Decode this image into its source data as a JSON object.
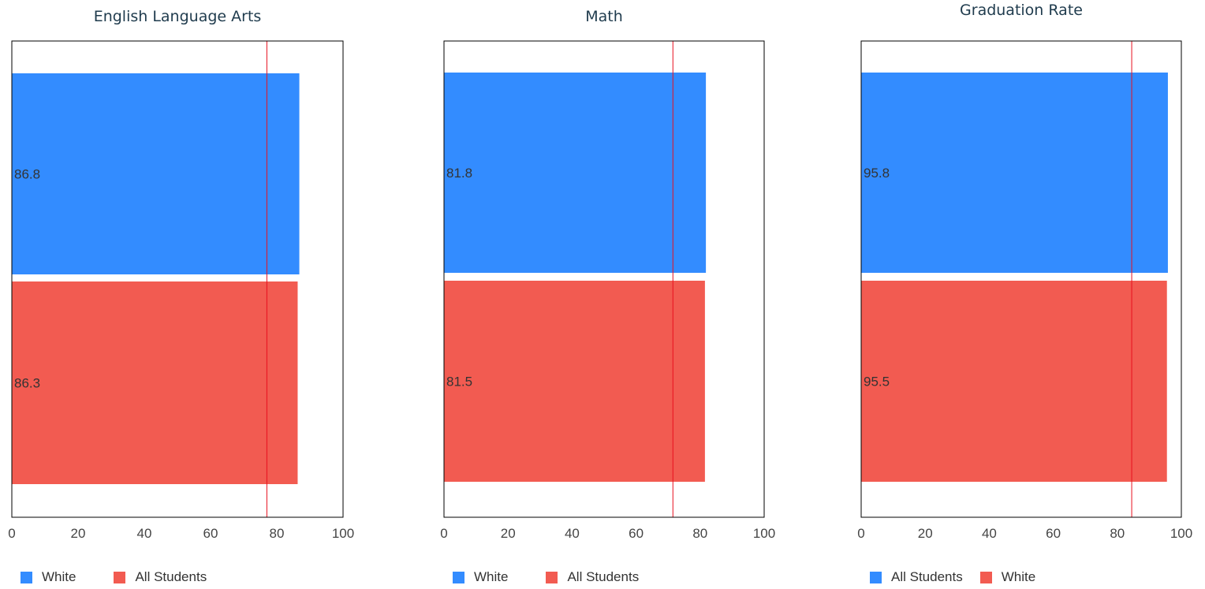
{
  "colors": {
    "blue": "#338cff",
    "red": "#f25b51",
    "reference_line": "#e8101e"
  },
  "chart_data": [
    {
      "type": "bar",
      "orientation": "horizontal",
      "title": "English Language Arts",
      "xlim": [
        0,
        100
      ],
      "ticks": [
        "0",
        "20",
        "40",
        "60",
        "80",
        "100"
      ],
      "reference_line": 77,
      "legend_placement": "bottom-left",
      "series": [
        {
          "name": "White",
          "value": 86.8,
          "label": "86.8",
          "color": "#338cff"
        },
        {
          "name": "All Students",
          "value": 86.3,
          "label": "86.3",
          "color": "#f25b51"
        }
      ],
      "legend": [
        {
          "name": "White",
          "color": "#338cff"
        },
        {
          "name": "All Students",
          "color": "#f25b51"
        }
      ]
    },
    {
      "type": "bar",
      "orientation": "horizontal",
      "title": "Math",
      "xlim": [
        0,
        100
      ],
      "ticks": [
        "0",
        "20",
        "40",
        "60",
        "80",
        "100"
      ],
      "reference_line": 71.5,
      "legend_placement": "bottom-left",
      "series": [
        {
          "name": "White",
          "value": 81.8,
          "label": "81.8",
          "color": "#338cff"
        },
        {
          "name": "All Students",
          "value": 81.5,
          "label": "81.5",
          "color": "#f25b51"
        }
      ],
      "legend": [
        {
          "name": "White",
          "color": "#338cff"
        },
        {
          "name": "All Students",
          "color": "#f25b51"
        }
      ]
    },
    {
      "type": "bar",
      "orientation": "horizontal",
      "title": "Graduation Rate",
      "xlim": [
        0,
        100
      ],
      "ticks": [
        "0",
        "20",
        "40",
        "60",
        "80",
        "100"
      ],
      "reference_line": 84.5,
      "legend_placement": "bottom-left",
      "series": [
        {
          "name": "All Students",
          "value": 95.8,
          "label": "95.8",
          "color": "#338cff"
        },
        {
          "name": "White",
          "value": 95.5,
          "label": "95.5",
          "color": "#f25b51"
        }
      ],
      "legend": [
        {
          "name": "All Students",
          "color": "#338cff"
        },
        {
          "name": "White",
          "color": "#f25b51"
        }
      ]
    }
  ]
}
